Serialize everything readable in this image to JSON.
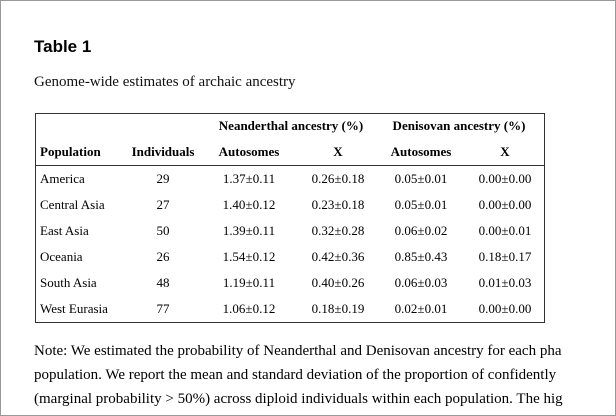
{
  "header": {
    "title": "Table 1",
    "caption": "Genome-wide estimates of archaic ancestry"
  },
  "table": {
    "groups": [
      "Neanderthal ancestry (%)",
      "Denisovan ancestry (%)"
    ],
    "columns": [
      "Population",
      "Individuals",
      "Autosomes",
      "X",
      "Autosomes",
      "X"
    ],
    "rows": [
      [
        "America",
        "29",
        "1.37±0.11",
        "0.26±0.18",
        "0.05±0.01",
        "0.00±0.00"
      ],
      [
        "Central Asia",
        "27",
        "1.40±0.12",
        "0.23±0.18",
        "0.05±0.01",
        "0.00±0.00"
      ],
      [
        "East Asia",
        "50",
        "1.39±0.11",
        "0.32±0.28",
        "0.06±0.02",
        "0.00±0.01"
      ],
      [
        "Oceania",
        "26",
        "1.54±0.12",
        "0.42±0.36",
        "0.85±0.43",
        "0.18±0.17"
      ],
      [
        "South Asia",
        "48",
        "1.19±0.11",
        "0.40±0.26",
        "0.06±0.03",
        "0.01±0.03"
      ],
      [
        "West Eurasia",
        "77",
        "1.06±0.12",
        "0.18±0.19",
        "0.02±0.01",
        "0.00±0.00"
      ]
    ]
  },
  "note": [
    "Note: We estimated the probability of Neanderthal and Denisovan ancestry for each pha",
    "population. We report the mean and standard deviation of the proportion of confidently",
    "(marginal probability > 50%) across diploid individuals within each population. The hig"
  ]
}
